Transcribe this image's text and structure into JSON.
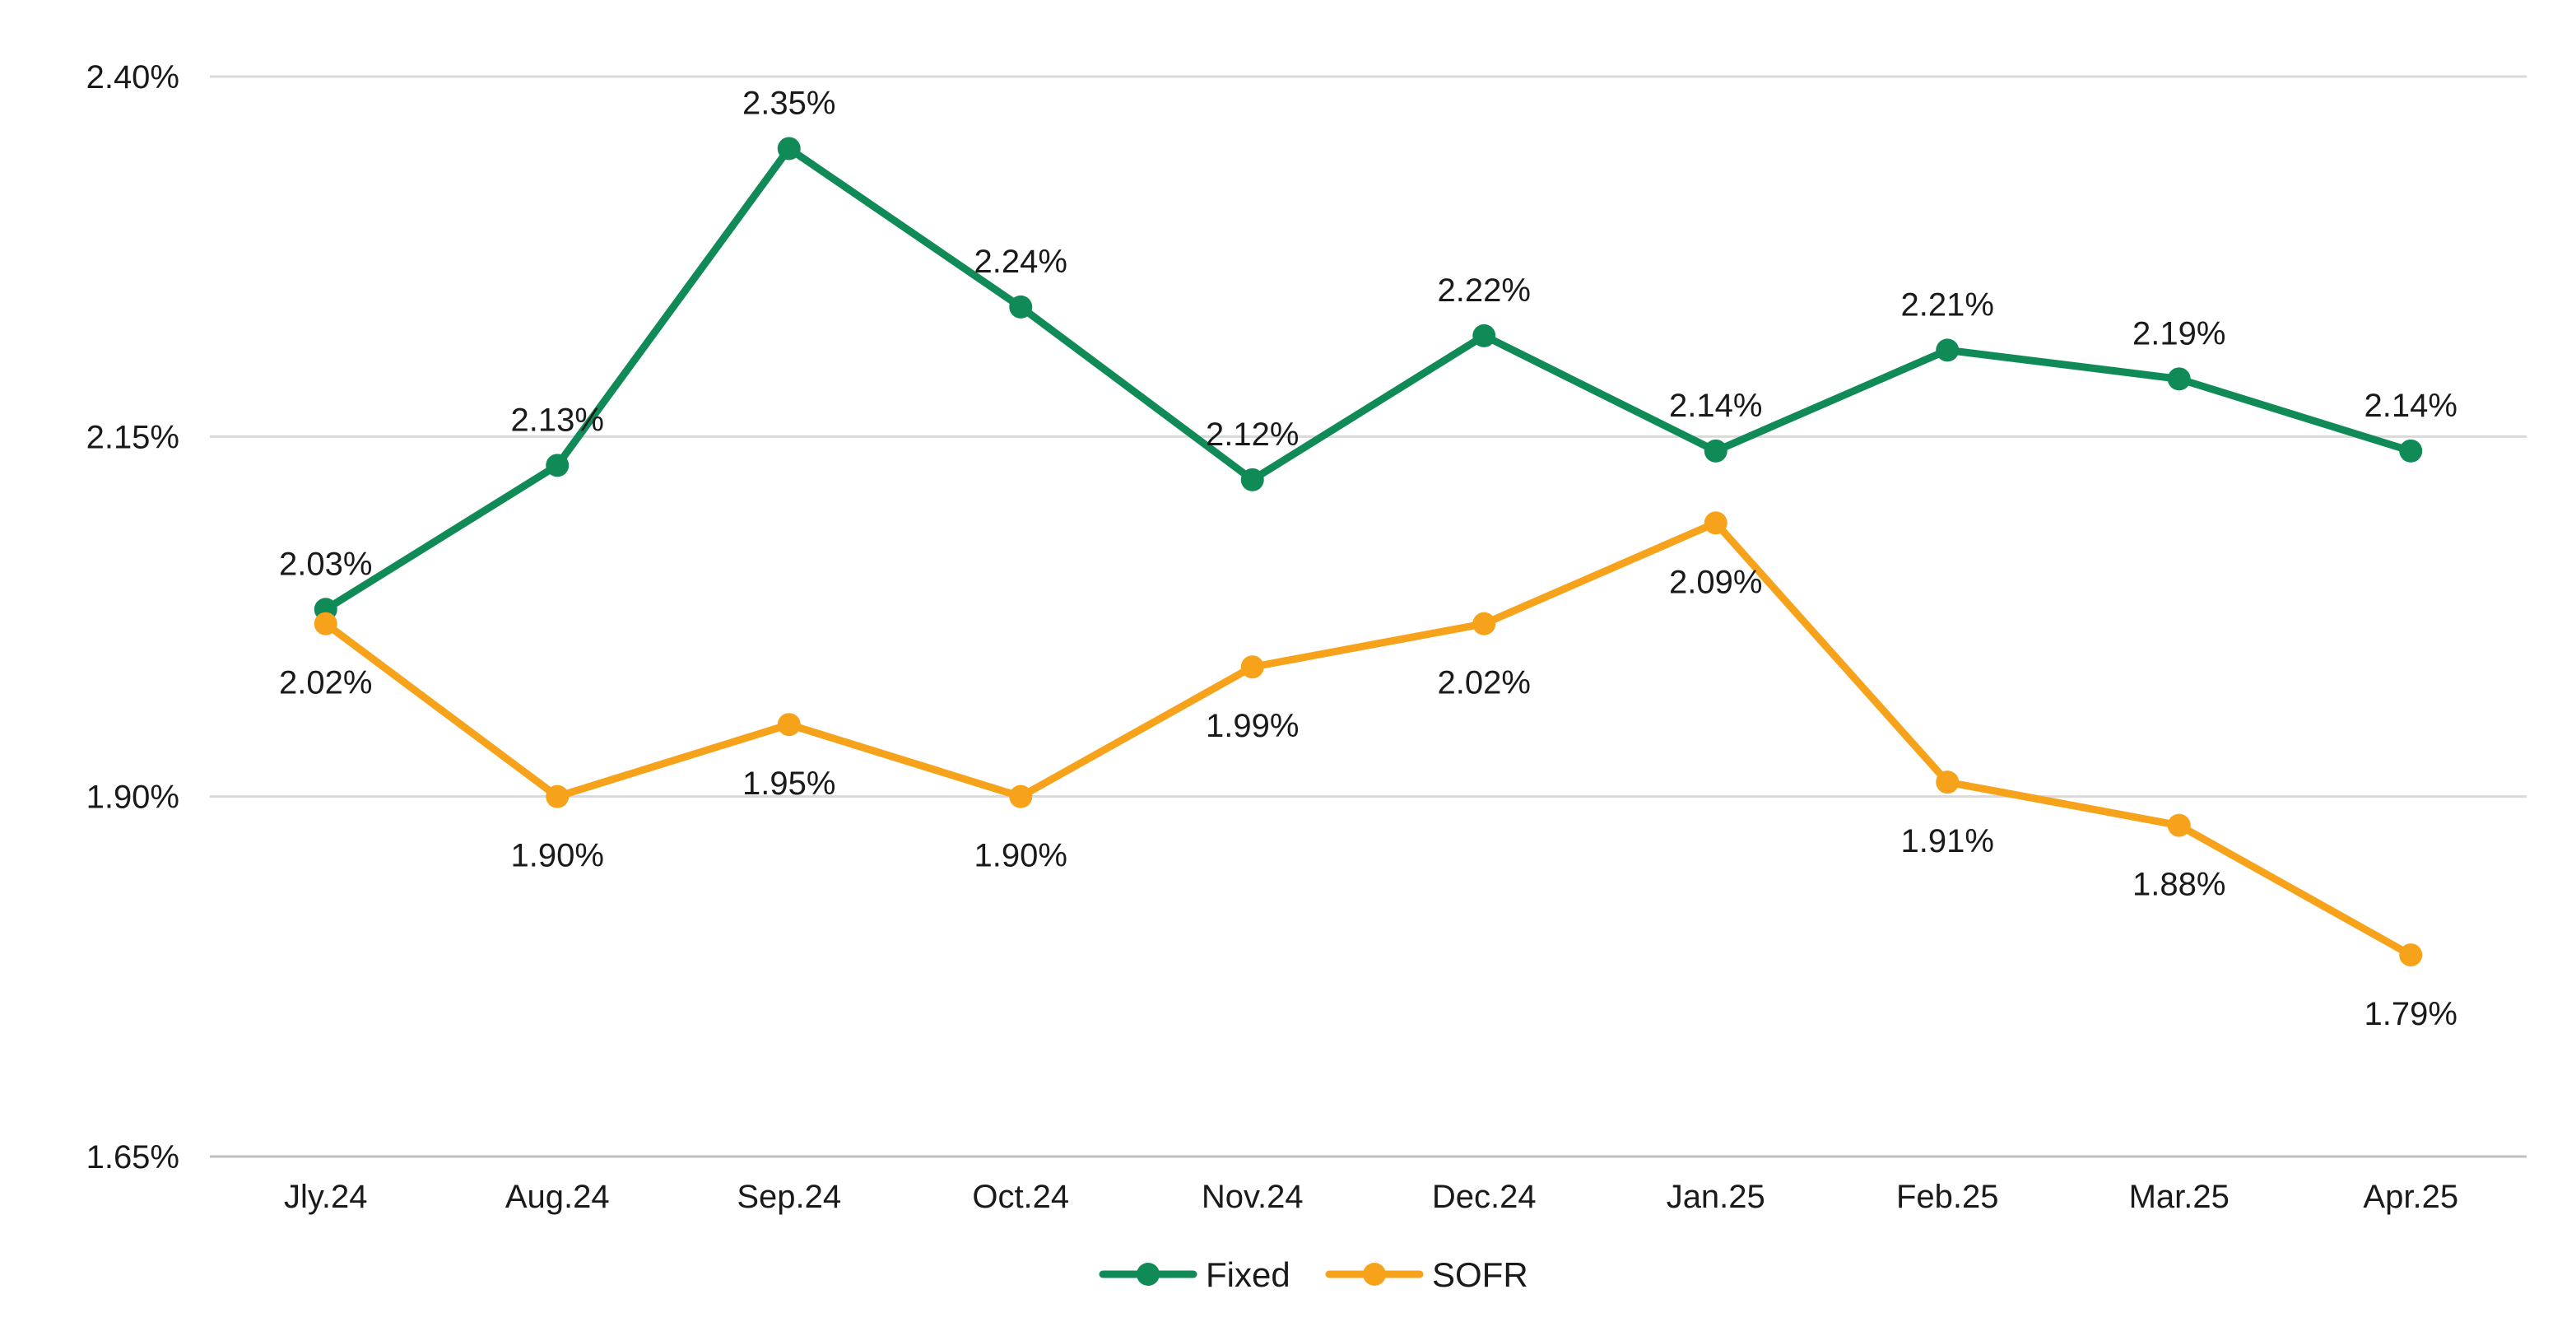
{
  "chart_data": {
    "type": "line",
    "title": "",
    "xlabel": "",
    "ylabel": "",
    "categories": [
      "Jly.24",
      "Aug.24",
      "Sep.24",
      "Oct.24",
      "Nov.24",
      "Dec.24",
      "Jan.25",
      "Feb.25",
      "Mar.25",
      "Apr.25"
    ],
    "ylim": [
      1.65,
      2.4
    ],
    "yticks": [
      1.65,
      1.9,
      2.15,
      2.4
    ],
    "ytick_labels": [
      "1.65%",
      "1.90%",
      "2.15%",
      "2.40%"
    ],
    "grid": true,
    "legend_position": "bottom",
    "series": [
      {
        "name": "Fixed",
        "color": "#108a57",
        "values": [
          2.03,
          2.13,
          2.35,
          2.24,
          2.12,
          2.22,
          2.14,
          2.21,
          2.19,
          2.14
        ],
        "labels": [
          "2.03%",
          "2.13%",
          "2.35%",
          "2.24%",
          "2.12%",
          "2.22%",
          "2.14%",
          "2.21%",
          "2.19%",
          "2.14%"
        ]
      },
      {
        "name": "SOFR",
        "color": "#f7a21b",
        "values": [
          2.02,
          1.9,
          1.95,
          1.9,
          1.99,
          2.02,
          2.09,
          1.91,
          1.88,
          1.79
        ],
        "labels": [
          "2.02%",
          "1.90%",
          "1.95%",
          "1.90%",
          "1.99%",
          "2.02%",
          "2.09%",
          "1.91%",
          "1.88%",
          "1.79%"
        ]
      }
    ]
  }
}
